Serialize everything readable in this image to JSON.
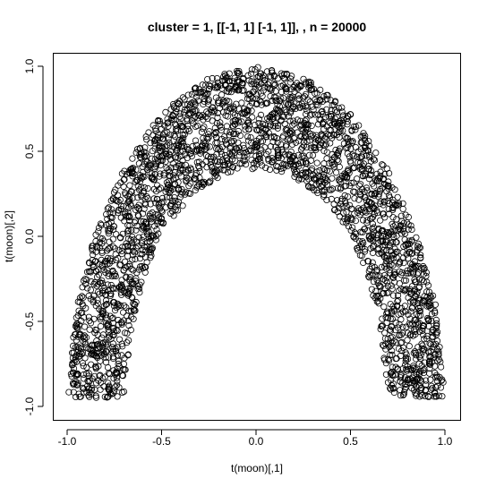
{
  "chart_data": {
    "type": "scatter",
    "title": "cluster = 1, [[-1, 1] [-1, 1]], , n = 20000",
    "xlabel": "t(moon)[,1]",
    "ylabel": "t(moon)[,2]",
    "xlim": [
      -1.0,
      1.0
    ],
    "ylim": [
      -1.0,
      1.0
    ],
    "x_ticks": [
      "-1.0",
      "-0.5",
      "0.0",
      "0.5",
      "1.0"
    ],
    "y_ticks": [
      "-1.0",
      "-0.5",
      "0.0",
      "0.5",
      "1.0"
    ],
    "marker": "open-circle",
    "grid": false,
    "legend": "none",
    "n": 20000,
    "shape": "upper half-moon (ring band between inner and outer arch)",
    "outer_arch": {
      "x": [
        -1.0,
        -0.95,
        -0.87,
        -0.71,
        -0.5,
        -0.26,
        0.0,
        0.26,
        0.5,
        0.71,
        0.87,
        0.95,
        1.0
      ],
      "y": [
        -0.95,
        -0.4,
        -0.05,
        0.38,
        0.73,
        0.93,
        1.0,
        0.93,
        0.73,
        0.38,
        -0.05,
        -0.4,
        -0.95
      ]
    },
    "inner_arch": {
      "x": [
        -0.7,
        -0.66,
        -0.6,
        -0.5,
        -0.35,
        -0.18,
        0.0,
        0.18,
        0.35,
        0.5,
        0.6,
        0.66,
        0.7
      ],
      "y": [
        -0.95,
        -0.55,
        -0.25,
        0.02,
        0.23,
        0.36,
        0.4,
        0.36,
        0.23,
        0.02,
        -0.25,
        -0.55,
        -0.95
      ]
    }
  }
}
